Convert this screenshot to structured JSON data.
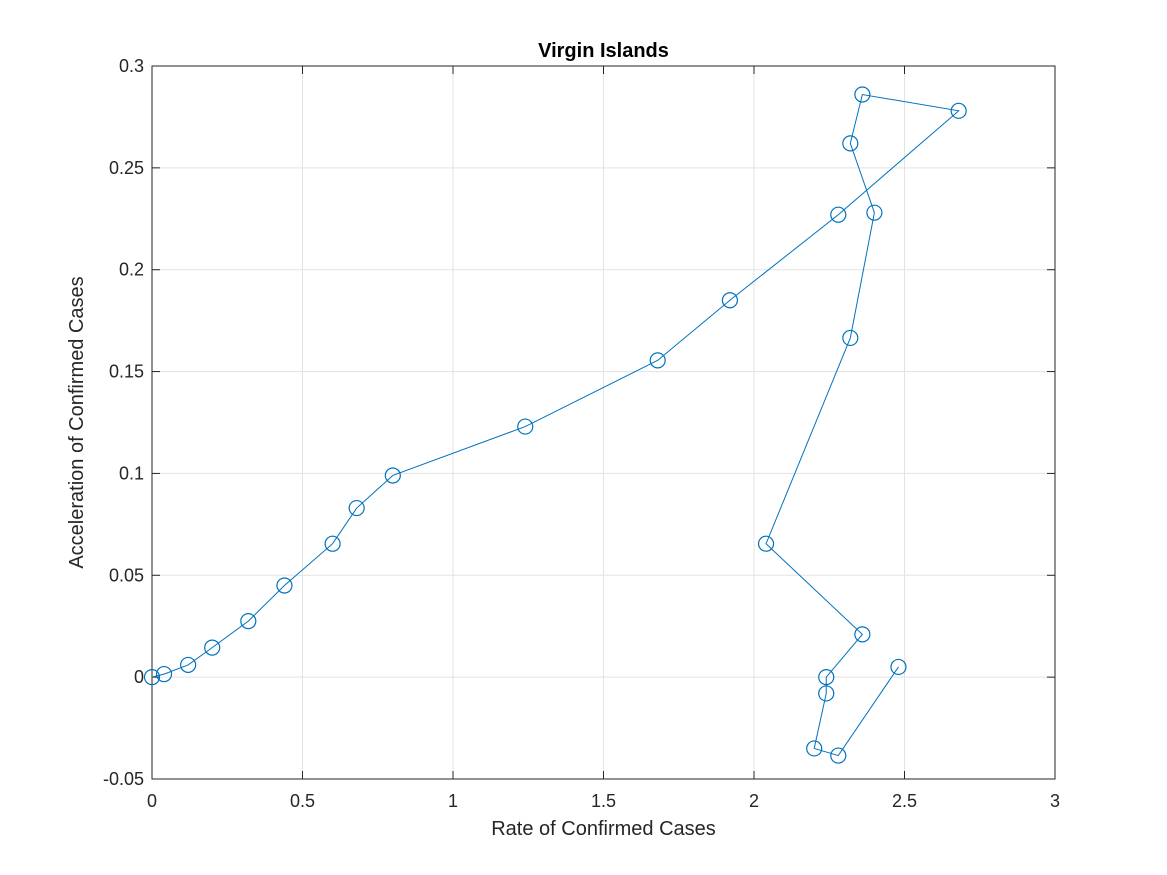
{
  "chart_data": {
    "type": "line",
    "title": "Virgin Islands",
    "xlabel": "Rate of Confirmed Cases",
    "ylabel": "Acceleration of Confirmed Cases",
    "xlim": [
      0,
      3
    ],
    "ylim": [
      -0.05,
      0.3
    ],
    "xticks": [
      0,
      0.5,
      1,
      1.5,
      2,
      2.5,
      3
    ],
    "xtick_labels": [
      "0",
      "0.5",
      "1",
      "1.5",
      "2",
      "2.5",
      "3"
    ],
    "yticks": [
      -0.05,
      0,
      0.05,
      0.1,
      0.15,
      0.2,
      0.25,
      0.3
    ],
    "ytick_labels": [
      "-0.05",
      "0",
      "0.05",
      "0.1",
      "0.15",
      "0.2",
      "0.25",
      "0.3"
    ],
    "grid": true,
    "marker": "circle",
    "color": "#0072BD",
    "series": [
      {
        "x": [
          0,
          0.04,
          0.12,
          0.2,
          0.32,
          0.44,
          0.6,
          0.68,
          0.8,
          1.24,
          1.68,
          1.92,
          2.28,
          2.68,
          2.36,
          2.32,
          2.4,
          2.32,
          2.04,
          2.36,
          2.24,
          2.24,
          2.2,
          2.28,
          2.48
        ],
        "y": [
          0,
          0.0015,
          0.006,
          0.0145,
          0.0275,
          0.045,
          0.0655,
          0.083,
          0.099,
          0.123,
          0.1555,
          0.185,
          0.227,
          0.278,
          0.286,
          0.262,
          0.228,
          0.1665,
          0.0655,
          0.021,
          0,
          -0.008,
          -0.035,
          -0.0385,
          0.005
        ]
      }
    ]
  }
}
